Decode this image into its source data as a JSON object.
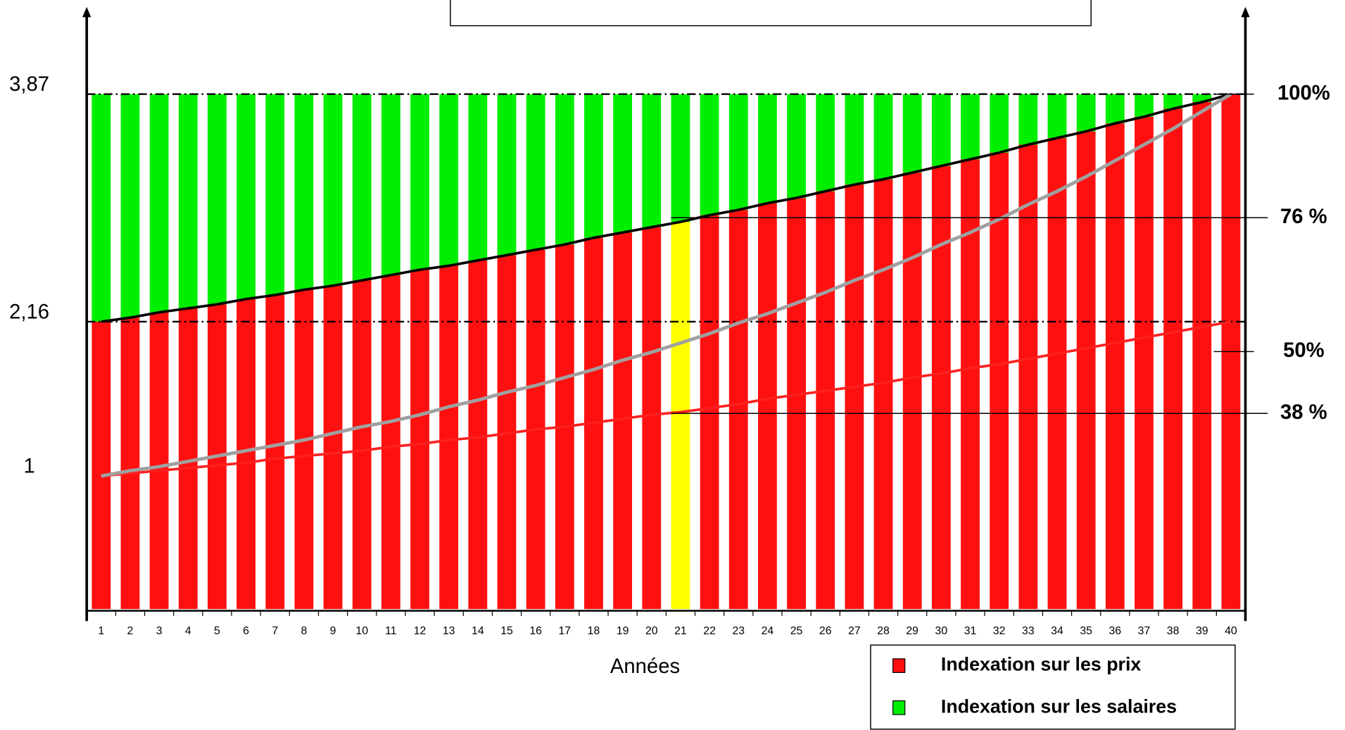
{
  "chart_data": {
    "type": "bar",
    "stacked": true,
    "x_label": "Années",
    "categories": [
      "1",
      "2",
      "3",
      "4",
      "5",
      "6",
      "7",
      "8",
      "9",
      "10",
      "11",
      "12",
      "13",
      "14",
      "15",
      "16",
      "17",
      "18",
      "19",
      "20",
      "21",
      "22",
      "23",
      "24",
      "25",
      "26",
      "27",
      "28",
      "29",
      "30",
      "31",
      "32",
      "33",
      "34",
      "35",
      "36",
      "37",
      "38",
      "39",
      "40"
    ],
    "highlight": {
      "category": "21",
      "color": "#ffff00"
    },
    "series": [
      {
        "name": "Indexation sur les prix",
        "color": "#ff1010",
        "values": [
          2.16,
          2.19,
          2.23,
          2.26,
          2.29,
          2.33,
          2.36,
          2.4,
          2.43,
          2.47,
          2.51,
          2.55,
          2.58,
          2.62,
          2.66,
          2.7,
          2.74,
          2.79,
          2.83,
          2.87,
          2.91,
          2.96,
          3.0,
          3.05,
          3.09,
          3.14,
          3.19,
          3.23,
          3.28,
          3.33,
          3.38,
          3.43,
          3.49,
          3.54,
          3.59,
          3.65,
          3.7,
          3.76,
          3.81,
          3.87
        ]
      },
      {
        "name": "Indexation sur les salaires",
        "color": "#00ee00",
        "values": [
          1.71,
          1.68,
          1.64,
          1.61,
          1.58,
          1.54,
          1.51,
          1.47,
          1.44,
          1.4,
          1.36,
          1.32,
          1.29,
          1.25,
          1.21,
          1.17,
          1.13,
          1.08,
          1.04,
          1.0,
          0.96,
          0.91,
          0.87,
          0.82,
          0.78,
          0.73,
          0.68,
          0.64,
          0.59,
          0.54,
          0.49,
          0.44,
          0.38,
          0.33,
          0.28,
          0.22,
          0.17,
          0.11,
          0.06,
          0
        ]
      },
      {
        "type": "line",
        "color": "#000000",
        "values": [
          2.16,
          2.19,
          2.23,
          2.26,
          2.29,
          2.33,
          2.36,
          2.4,
          2.43,
          2.47,
          2.51,
          2.55,
          2.58,
          2.62,
          2.66,
          2.7,
          2.74,
          2.79,
          2.83,
          2.87,
          2.91,
          2.96,
          3.0,
          3.05,
          3.09,
          3.14,
          3.19,
          3.23,
          3.28,
          3.33,
          3.38,
          3.43,
          3.49,
          3.54,
          3.59,
          3.65,
          3.7,
          3.76,
          3.81,
          3.87
        ]
      },
      {
        "type": "line",
        "color": "#ff2020",
        "values": [
          1,
          1.02,
          1.04,
          1.06,
          1.08,
          1.1,
          1.13,
          1.15,
          1.17,
          1.19,
          1.22,
          1.24,
          1.27,
          1.29,
          1.32,
          1.35,
          1.37,
          1.4,
          1.43,
          1.46,
          1.48,
          1.51,
          1.54,
          1.58,
          1.61,
          1.64,
          1.67,
          1.7,
          1.74,
          1.77,
          1.81,
          1.84,
          1.88,
          1.92,
          1.96,
          2.0,
          2.04,
          2.08,
          2.12,
          2.16
        ]
      },
      {
        "type": "line",
        "color": "#a0a0a0",
        "values": [
          1,
          1.04,
          1.07,
          1.11,
          1.15,
          1.19,
          1.23,
          1.27,
          1.32,
          1.37,
          1.41,
          1.46,
          1.52,
          1.57,
          1.63,
          1.68,
          1.74,
          1.8,
          1.87,
          1.93,
          2.0,
          2.07,
          2.15,
          2.22,
          2.3,
          2.38,
          2.47,
          2.55,
          2.64,
          2.74,
          2.83,
          2.93,
          3.04,
          3.14,
          3.25,
          3.37,
          3.49,
          3.61,
          3.74,
          3.87
        ]
      }
    ],
    "ylim": [
      0,
      4.5
    ],
    "yticks": [
      1,
      {
        "value": 2.16,
        "label": "2,16",
        "guide": true
      },
      {
        "value": 3.87,
        "label": "3,87",
        "guide": true
      }
    ],
    "y2lim": [
      0,
      116.28
    ],
    "y2ticks": [
      {
        "value": 38,
        "label": "38 %",
        "guide": true
      },
      {
        "value": 50,
        "label": "50%"
      },
      {
        "value": 76,
        "label": "76 %",
        "guide": true
      },
      {
        "value": 100,
        "label": "100%"
      }
    ]
  }
}
